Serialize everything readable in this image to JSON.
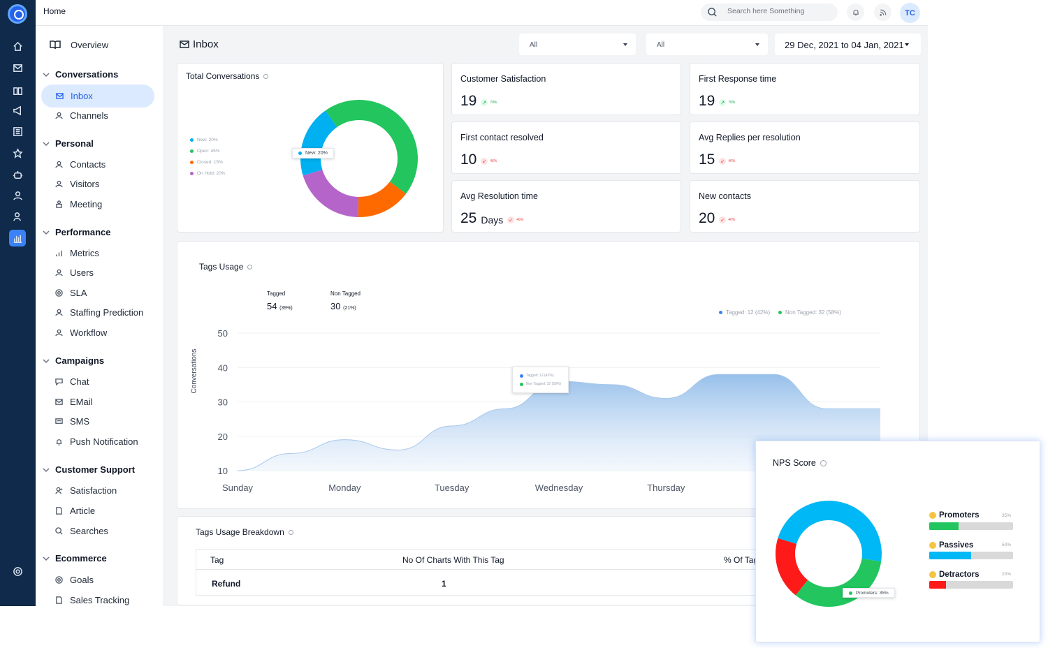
{
  "topbar": {
    "breadcrumb": "Home",
    "search_placeholder": "Search here Something",
    "avatar_initials": "TC"
  },
  "sidebar": {
    "overview": "Overview",
    "groups": [
      {
        "label": "Conversations",
        "items": [
          "Inbox",
          "Channels"
        ]
      },
      {
        "label": "Personal",
        "items": [
          "Contacts",
          "Visitors",
          "Meeting"
        ]
      },
      {
        "label": "Performance",
        "items": [
          "Metrics",
          "Users",
          "SLA",
          "Staffing Prediction",
          "Workflow"
        ]
      },
      {
        "label": "Campaigns",
        "items": [
          "Chat",
          "EMail",
          "SMS",
          "Push Notification"
        ]
      },
      {
        "label": "Customer Support",
        "items": [
          "Satisfaction",
          "Article",
          "Searches"
        ]
      },
      {
        "label": "Ecommerce",
        "items": [
          "Goals",
          "Sales Tracking"
        ]
      }
    ],
    "active_item": "Inbox"
  },
  "main": {
    "title": "Inbox",
    "filter1": "All",
    "filter2": "All",
    "date_range": "29 Dec, 2021 to 04 Jan, 2021"
  },
  "total_conversations": {
    "title": "Total Conversations",
    "legend": [
      "New: 20%",
      "Open: 45%",
      "Closed: 15%",
      "On Hold: 20%"
    ],
    "tooltip": "New: 20%",
    "colors": [
      "#00b0f0",
      "#22c55e",
      "#ff6a00",
      "#b565c9"
    ],
    "chart_data": {
      "type": "pie",
      "categories": [
        "New",
        "Open",
        "Closed",
        "On Hold"
      ],
      "values": [
        20,
        45,
        15,
        20
      ]
    }
  },
  "kpis": [
    {
      "label": "Customer Satisfaction",
      "value": "19",
      "unit": "",
      "delta": "70%",
      "direction": "up"
    },
    {
      "label": "First Response time",
      "value": "19",
      "unit": "",
      "delta": "70%",
      "direction": "up"
    },
    {
      "label": "First contact resolved",
      "value": "10",
      "unit": "",
      "delta": "46%",
      "direction": "down"
    },
    {
      "label": "Avg Replies per resolution",
      "value": "15",
      "unit": "",
      "delta": "46%",
      "direction": "down"
    },
    {
      "label": "Avg Resolution time",
      "value": "25",
      "unit": "Days",
      "delta": "46%",
      "direction": "down"
    },
    {
      "label": "New contacts",
      "value": "20",
      "unit": "",
      "delta": "46%",
      "direction": "down"
    }
  ],
  "tags_usage": {
    "title": "Tags Usage",
    "tagged_label": "Tagged",
    "tagged_value": "54",
    "tagged_pct": "(39%)",
    "non_tagged_label": "Non Tagged",
    "non_tagged_value": "30",
    "non_tagged_pct": "(21%)",
    "legend": [
      "Tagged: 12 (42%)",
      "Non Tagged: 32 (58%)"
    ],
    "tooltip": [
      "Tagged: 12 (42%)",
      "Non Tagged: 32 (58%)"
    ],
    "chart_data": {
      "type": "area",
      "ylabel": "Conversations",
      "yticks": [
        10,
        20,
        30,
        40,
        50
      ],
      "ylim": [
        10,
        50
      ],
      "categories": [
        "Sunday",
        "Monday",
        "Tuesday",
        "Wednesday",
        "Thursday"
      ],
      "x": [
        0,
        0.5,
        1,
        1.5,
        2,
        2.5,
        3,
        3.5,
        4,
        4.5,
        5,
        5.5,
        6
      ],
      "values": [
        10,
        15,
        19,
        16,
        23,
        28,
        36,
        35,
        31,
        38,
        38,
        28,
        28
      ]
    }
  },
  "breakdown": {
    "title": "Tags Usage Breakdown",
    "columns": [
      "Tag",
      "No Of Charts With This Tag",
      "% Of Tag"
    ],
    "rows": [
      [
        "Refund",
        "1",
        ""
      ]
    ]
  },
  "nps": {
    "title": "NPS Score",
    "tooltip": "Promoters: 35%",
    "colors": [
      "#00b8f5",
      "#22c55e",
      "#ff1a1a"
    ],
    "chart_data": {
      "type": "pie",
      "categories": [
        "Passives",
        "Promoters",
        "Detractors"
      ],
      "values": [
        50,
        35,
        20
      ]
    },
    "rows": [
      {
        "label": "Promoters",
        "pct": "35%",
        "value": 35,
        "color": "#22c55e"
      },
      {
        "label": "Passives",
        "pct": "50%",
        "value": 50,
        "color": "#00b8f5"
      },
      {
        "label": "Detractors",
        "pct": "20%",
        "value": 20,
        "color": "#ff1a1a"
      }
    ]
  }
}
